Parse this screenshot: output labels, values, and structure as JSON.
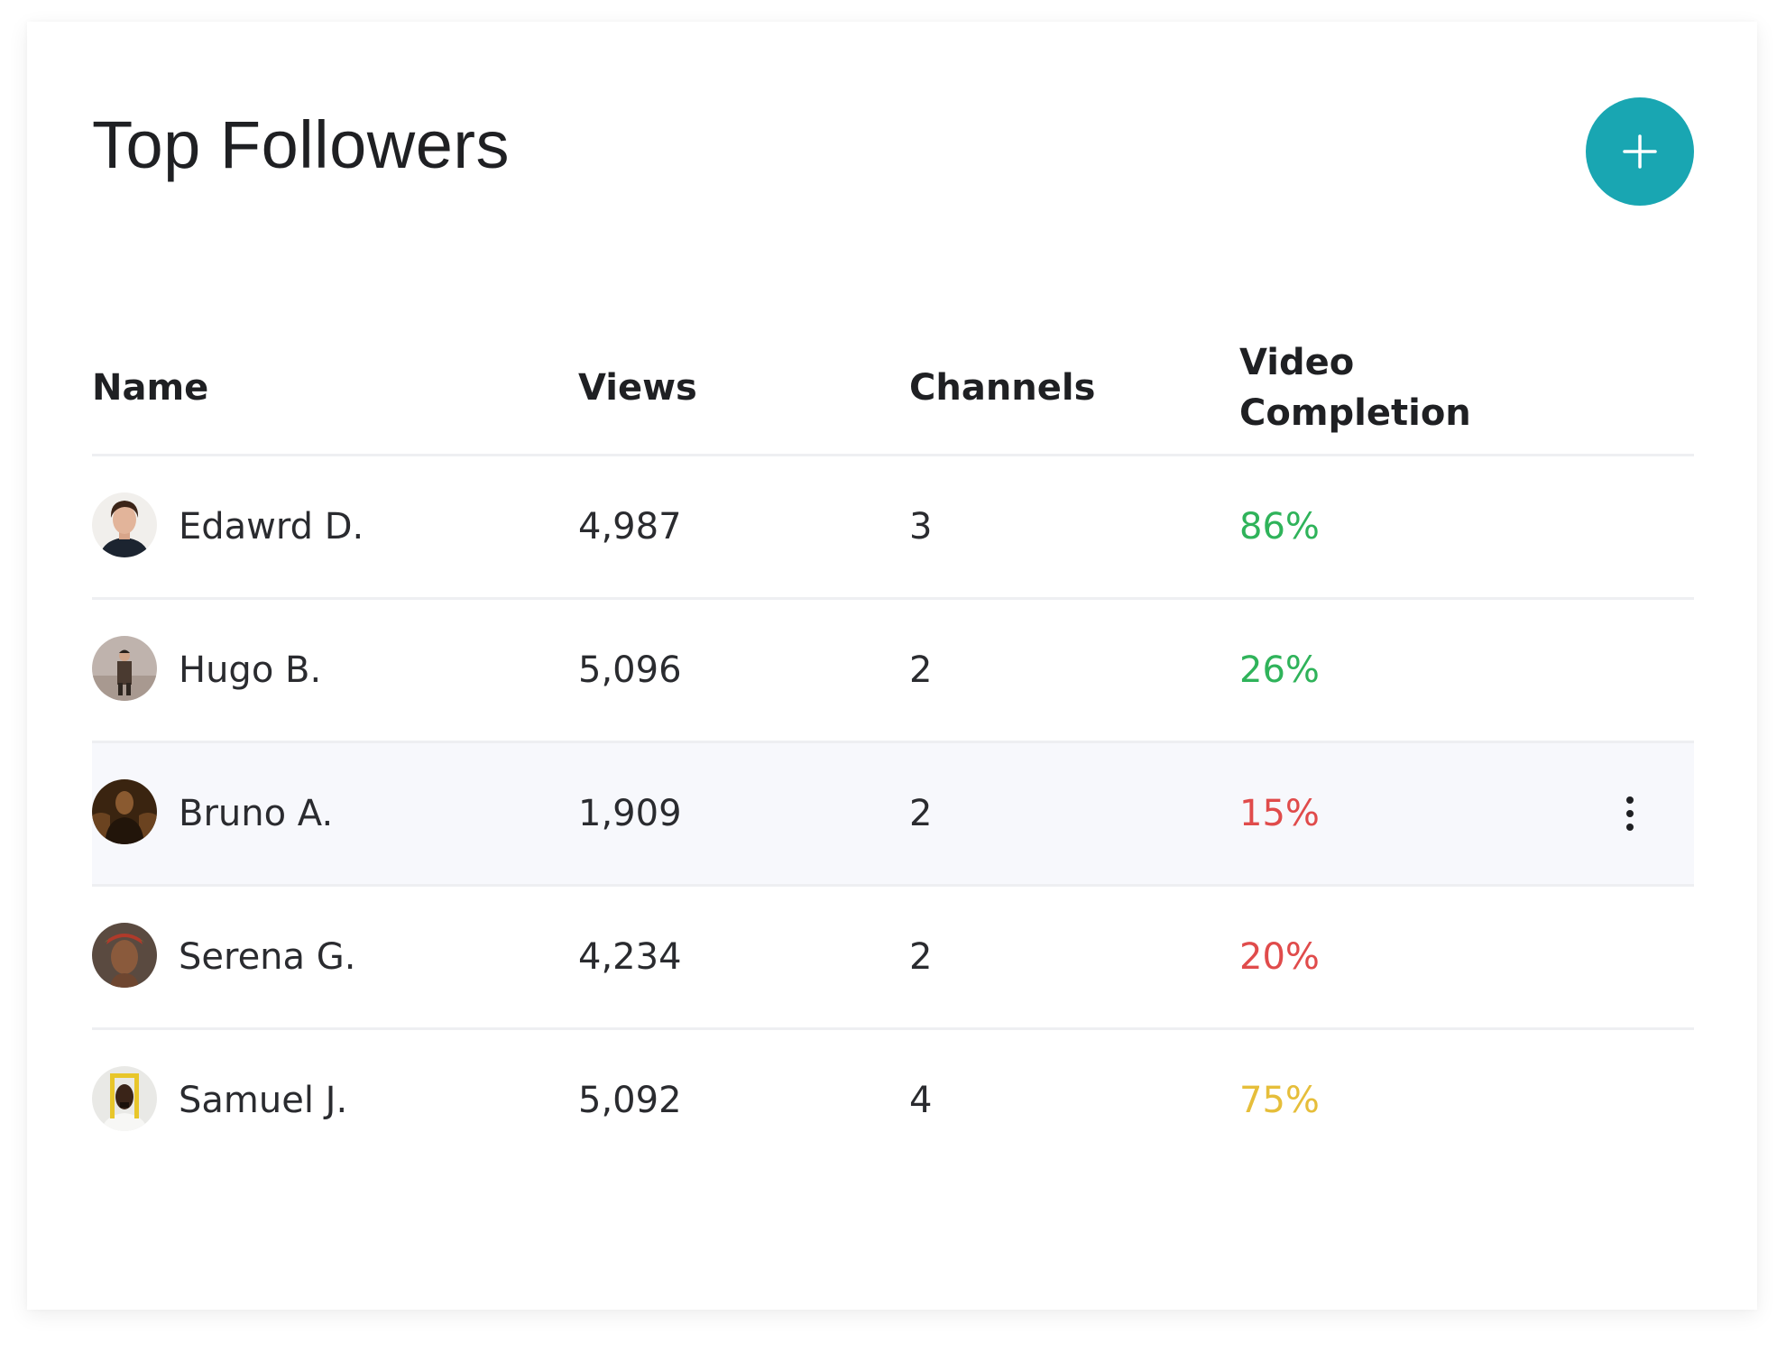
{
  "card": {
    "title": "Top Followers",
    "add_button": {
      "icon": "plus-icon",
      "color": "#19a6b2"
    }
  },
  "table": {
    "columns": [
      {
        "label": "Name"
      },
      {
        "label": "Views"
      },
      {
        "label": "Channels"
      },
      {
        "label": "Video\nCompletion"
      }
    ],
    "rows": [
      {
        "name": "Edawrd D.",
        "views": "4,987",
        "channels": "3",
        "completion": "86%",
        "completion_color": "#2fb35a",
        "avatar": "avatar-edawrd"
      },
      {
        "name": "Hugo B.",
        "views": "5,096",
        "channels": "2",
        "completion": "26%",
        "completion_color": "#2fb35a",
        "avatar": "avatar-hugo"
      },
      {
        "name": "Bruno A.",
        "views": "1,909",
        "channels": "2",
        "completion": "15%",
        "completion_color": "#e04b4b",
        "avatar": "avatar-bruno",
        "highlighted": true,
        "row_menu_icon": "more-vertical-icon"
      },
      {
        "name": "Serena G.",
        "views": "4,234",
        "channels": "2",
        "completion": "20%",
        "completion_color": "#e04b4b",
        "avatar": "avatar-serena"
      },
      {
        "name": "Samuel J.",
        "views": "5,092",
        "channels": "4",
        "completion": "75%",
        "completion_color": "#e6be3a",
        "avatar": "avatar-samuel"
      }
    ]
  },
  "colors": {
    "accent": "#19a6b2",
    "divider": "#eeeff2",
    "row_highlight": "#f7f8fc",
    "positive": "#2fb35a",
    "negative": "#e04b4b",
    "warning": "#e6be3a"
  }
}
